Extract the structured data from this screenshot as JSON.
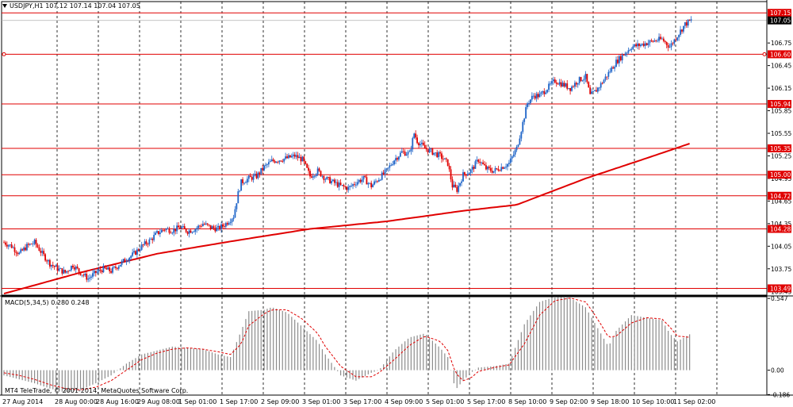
{
  "window": {
    "symbol_label": "USDJPY,H1",
    "ohlc_text": "107.12 107.14 107.04 107.05",
    "copyright": "MT4 TeleTrade, © 2001-2014, MetaQuotes Software Corp."
  },
  "colors": {
    "grid": "#000000",
    "hline": "#e00000",
    "ma": "#e00000",
    "bull": "#1e64c8",
    "bear": "#e00000",
    "hist": "#8c8c8c",
    "signal": "#e00000",
    "price_tag_bg": "#e00000",
    "current_tag_bg": "#000000"
  },
  "chart_data": [
    {
      "type": "candlestick",
      "symbol": "USDJPY",
      "timeframe": "H1",
      "title": "USDJPY,H1",
      "ylim": [
        103.4,
        107.3
      ],
      "y_ticks": [
        "107.15",
        "107.05",
        "106.75",
        "106.60",
        "106.45",
        "106.15",
        "105.94",
        "105.85",
        "105.55",
        "105.35",
        "105.25",
        "105.00",
        "104.95",
        "104.72",
        "104.65",
        "104.35",
        "104.28",
        "104.05",
        "103.75",
        "103.49",
        "103.45"
      ],
      "x_ticks": [
        "27 Aug 2014",
        "28 Aug 00:00",
        "28 Aug 16:00",
        "29 Aug 08:00",
        "1 Sep 01:00",
        "1 Sep 17:00",
        "2 Sep 09:00",
        "3 Sep 01:00",
        "3 Sep 17:00",
        "4 Sep 09:00",
        "5 Sep 01:00",
        "5 Sep 17:00",
        "8 Sep 10:00",
        "9 Sep 02:00",
        "9 Sep 18:00",
        "10 Sep 10:00",
        "11 Sep 02:00"
      ],
      "horizontal_levels": [
        "107.15",
        "106.60",
        "105.94",
        "105.35",
        "105.00",
        "104.72",
        "104.28",
        "103.49"
      ],
      "current_price": "107.05",
      "close_path": [
        [
          0,
          104.1
        ],
        [
          5,
          104.05
        ],
        [
          10,
          103.95
        ],
        [
          15,
          104.05
        ],
        [
          20,
          104.1
        ],
        [
          25,
          103.95
        ],
        [
          30,
          103.82
        ],
        [
          35,
          103.75
        ],
        [
          40,
          103.7
        ],
        [
          45,
          103.8
        ],
        [
          50,
          103.7
        ],
        [
          55,
          103.62
        ],
        [
          60,
          103.7
        ],
        [
          65,
          103.75
        ],
        [
          70,
          103.72
        ],
        [
          75,
          103.8
        ],
        [
          80,
          103.88
        ],
        [
          85,
          103.95
        ],
        [
          90,
          104.05
        ],
        [
          95,
          104.12
        ],
        [
          100,
          104.22
        ],
        [
          105,
          104.28
        ],
        [
          110,
          104.26
        ],
        [
          115,
          104.3
        ],
        [
          120,
          104.25
        ],
        [
          125,
          104.28
        ],
        [
          130,
          104.35
        ],
        [
          135,
          104.3
        ],
        [
          140,
          104.28
        ],
        [
          145,
          104.35
        ],
        [
          150,
          104.45
        ],
        [
          153,
          104.75
        ],
        [
          155,
          104.9
        ],
        [
          160,
          104.95
        ],
        [
          165,
          104.98
        ],
        [
          170,
          105.1
        ],
        [
          175,
          105.18
        ],
        [
          180,
          105.2
        ],
        [
          185,
          105.22
        ],
        [
          190,
          105.25
        ],
        [
          195,
          105.2
        ],
        [
          200,
          104.98
        ],
        [
          205,
          105.05
        ],
        [
          210,
          104.95
        ],
        [
          215,
          104.9
        ],
        [
          220,
          104.85
        ],
        [
          225,
          104.82
        ],
        [
          230,
          104.9
        ],
        [
          235,
          104.95
        ],
        [
          240,
          104.85
        ],
        [
          245,
          104.95
        ],
        [
          250,
          105.05
        ],
        [
          255,
          105.2
        ],
        [
          260,
          105.3
        ],
        [
          265,
          105.28
        ],
        [
          268,
          105.55
        ],
        [
          270,
          105.45
        ],
        [
          275,
          105.35
        ],
        [
          280,
          105.3
        ],
        [
          285,
          105.25
        ],
        [
          290,
          105.15
        ],
        [
          293,
          104.85
        ],
        [
          296,
          104.8
        ],
        [
          300,
          105.0
        ],
        [
          305,
          105.05
        ],
        [
          310,
          105.2
        ],
        [
          315,
          105.08
        ],
        [
          320,
          105.05
        ],
        [
          325,
          105.1
        ],
        [
          330,
          105.15
        ],
        [
          335,
          105.35
        ],
        [
          338,
          105.6
        ],
        [
          342,
          105.95
        ],
        [
          346,
          106.05
        ],
        [
          350,
          106.05
        ],
        [
          355,
          106.15
        ],
        [
          360,
          106.25
        ],
        [
          365,
          106.2
        ],
        [
          370,
          106.15
        ],
        [
          375,
          106.25
        ],
        [
          380,
          106.3
        ],
        [
          383,
          106.05
        ],
        [
          386,
          106.1
        ],
        [
          390,
          106.2
        ],
        [
          395,
          106.35
        ],
        [
          400,
          106.5
        ],
        [
          405,
          106.6
        ],
        [
          410,
          106.7
        ],
        [
          415,
          106.72
        ],
        [
          420,
          106.75
        ],
        [
          425,
          106.78
        ],
        [
          430,
          106.8
        ],
        [
          435,
          106.7
        ],
        [
          440,
          106.85
        ],
        [
          445,
          107.0
        ],
        [
          449,
          107.05
        ]
      ],
      "moving_average": [
        [
          0,
          103.42
        ],
        [
          50,
          103.7
        ],
        [
          100,
          103.95
        ],
        [
          150,
          104.12
        ],
        [
          200,
          104.28
        ],
        [
          250,
          104.38
        ],
        [
          300,
          104.52
        ],
        [
          335,
          104.6
        ],
        [
          380,
          104.95
        ],
        [
          420,
          105.22
        ],
        [
          449,
          105.42
        ]
      ]
    },
    {
      "type": "bar",
      "title": "MACD(5,34,5)",
      "values_text": "0.280 0.248",
      "ylim": [
        -0.19,
        0.56
      ],
      "y_ticks": [
        "0.547",
        "0.00",
        "-0.186"
      ],
      "histogram_path": [
        [
          0,
          -0.04
        ],
        [
          10,
          -0.07
        ],
        [
          20,
          -0.1
        ],
        [
          30,
          -0.14
        ],
        [
          40,
          -0.17
        ],
        [
          50,
          -0.15
        ],
        [
          60,
          -0.1
        ],
        [
          70,
          -0.04
        ],
        [
          80,
          0.05
        ],
        [
          90,
          0.12
        ],
        [
          100,
          0.15
        ],
        [
          110,
          0.18
        ],
        [
          120,
          0.17
        ],
        [
          130,
          0.16
        ],
        [
          140,
          0.12
        ],
        [
          148,
          0.1
        ],
        [
          155,
          0.3
        ],
        [
          160,
          0.45
        ],
        [
          170,
          0.46
        ],
        [
          175,
          0.48
        ],
        [
          185,
          0.44
        ],
        [
          195,
          0.33
        ],
        [
          205,
          0.22
        ],
        [
          210,
          0.12
        ],
        [
          220,
          -0.04
        ],
        [
          230,
          -0.08
        ],
        [
          240,
          -0.02
        ],
        [
          245,
          0.0
        ],
        [
          255,
          0.15
        ],
        [
          265,
          0.25
        ],
        [
          275,
          0.28
        ],
        [
          285,
          0.17
        ],
        [
          290,
          0.1
        ],
        [
          295,
          -0.15
        ],
        [
          300,
          -0.08
        ],
        [
          305,
          -0.02
        ],
        [
          310,
          0.02
        ],
        [
          320,
          0.03
        ],
        [
          330,
          0.05
        ],
        [
          340,
          0.35
        ],
        [
          350,
          0.52
        ],
        [
          360,
          0.56
        ],
        [
          370,
          0.55
        ],
        [
          380,
          0.48
        ],
        [
          385,
          0.38
        ],
        [
          390,
          0.28
        ],
        [
          395,
          0.18
        ],
        [
          400,
          0.3
        ],
        [
          410,
          0.42
        ],
        [
          420,
          0.4
        ],
        [
          430,
          0.38
        ],
        [
          435,
          0.28
        ],
        [
          440,
          0.22
        ],
        [
          449,
          0.28
        ]
      ],
      "signal_path": [
        [
          0,
          -0.02
        ],
        [
          10,
          -0.04
        ],
        [
          20,
          -0.07
        ],
        [
          30,
          -0.11
        ],
        [
          40,
          -0.14
        ],
        [
          50,
          -0.15
        ],
        [
          60,
          -0.13
        ],
        [
          70,
          -0.08
        ],
        [
          80,
          0.0
        ],
        [
          90,
          0.08
        ],
        [
          100,
          0.13
        ],
        [
          110,
          0.16
        ],
        [
          120,
          0.17
        ],
        [
          130,
          0.16
        ],
        [
          140,
          0.14
        ],
        [
          148,
          0.12
        ],
        [
          155,
          0.2
        ],
        [
          160,
          0.34
        ],
        [
          170,
          0.43
        ],
        [
          175,
          0.46
        ],
        [
          185,
          0.46
        ],
        [
          195,
          0.39
        ],
        [
          205,
          0.28
        ],
        [
          210,
          0.18
        ],
        [
          220,
          0.03
        ],
        [
          230,
          -0.05
        ],
        [
          240,
          -0.05
        ],
        [
          245,
          -0.02
        ],
        [
          255,
          0.08
        ],
        [
          265,
          0.19
        ],
        [
          275,
          0.26
        ],
        [
          285,
          0.22
        ],
        [
          290,
          0.15
        ],
        [
          295,
          -0.02
        ],
        [
          300,
          -0.08
        ],
        [
          305,
          -0.06
        ],
        [
          310,
          -0.01
        ],
        [
          320,
          0.02
        ],
        [
          330,
          0.04
        ],
        [
          340,
          0.2
        ],
        [
          350,
          0.42
        ],
        [
          360,
          0.53
        ],
        [
          370,
          0.55
        ],
        [
          380,
          0.52
        ],
        [
          385,
          0.44
        ],
        [
          390,
          0.35
        ],
        [
          395,
          0.25
        ],
        [
          400,
          0.26
        ],
        [
          410,
          0.36
        ],
        [
          420,
          0.4
        ],
        [
          430,
          0.39
        ],
        [
          435,
          0.33
        ],
        [
          440,
          0.26
        ],
        [
          449,
          0.25
        ]
      ]
    }
  ]
}
